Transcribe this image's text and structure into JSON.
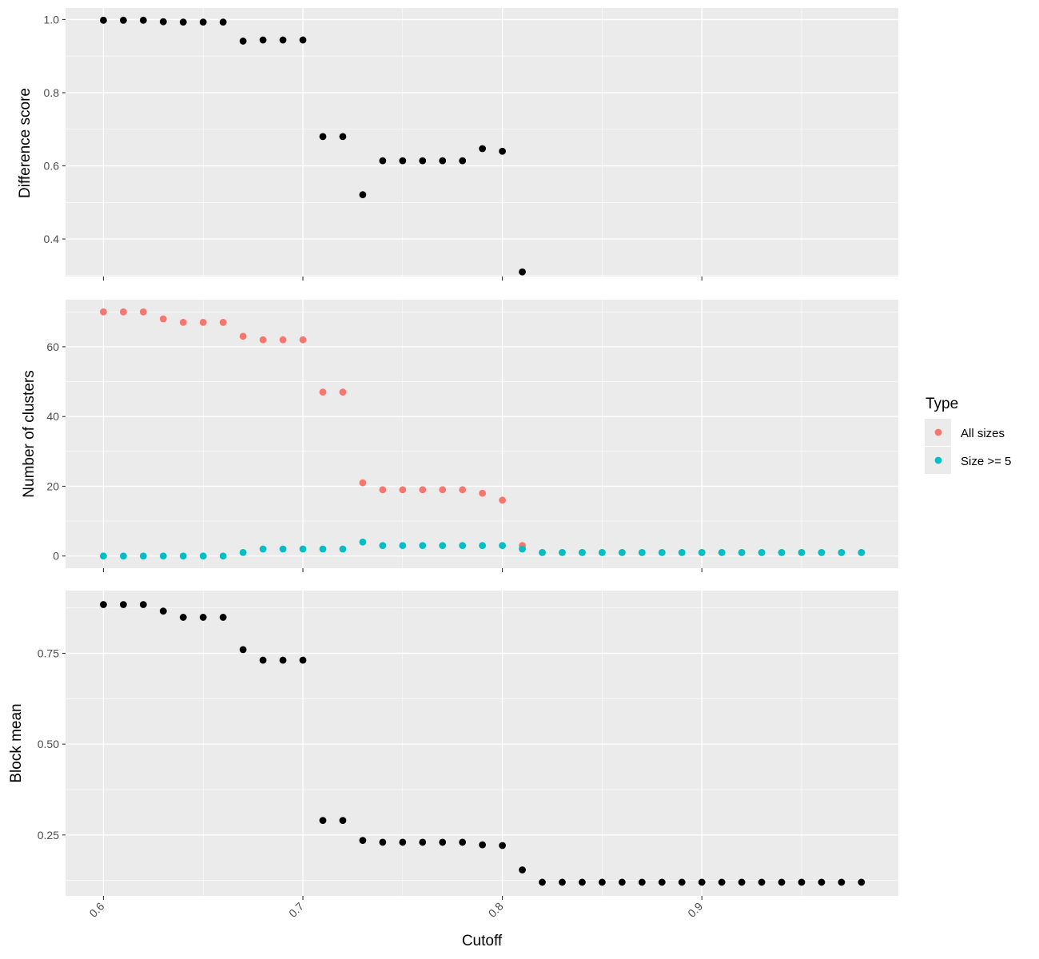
{
  "chart_data": [
    {
      "type": "scatter",
      "ylabel": "Difference score",
      "xlim": [
        0.581,
        0.9985
      ],
      "ylim": [
        0.2975,
        1.0315
      ],
      "y_ticks": [
        "0.4",
        "0.6",
        "0.8",
        "1.0"
      ],
      "y_tick_values": [
        0.4,
        0.6,
        0.8,
        1.0
      ],
      "grid": true,
      "series": [
        {
          "color": "#000000",
          "x": [
            0.6,
            0.61,
            0.62,
            0.63,
            0.64,
            0.65,
            0.66,
            0.67,
            0.68,
            0.69,
            0.7,
            0.71,
            0.72,
            0.73,
            0.74,
            0.75,
            0.76,
            0.77,
            0.78,
            0.79,
            0.8,
            0.81
          ],
          "y": [
            0.998,
            0.998,
            0.998,
            0.994,
            0.993,
            0.993,
            0.993,
            0.941,
            0.944,
            0.944,
            0.944,
            0.68,
            0.68,
            0.521,
            0.614,
            0.614,
            0.614,
            0.614,
            0.614,
            0.647,
            0.64,
            0.31
          ]
        }
      ]
    },
    {
      "type": "scatter",
      "ylabel": "Number of clusters",
      "xlim": [
        0.581,
        0.9985
      ],
      "ylim": [
        -3.5,
        73.5
      ],
      "y_ticks": [
        "0",
        "20",
        "40",
        "60"
      ],
      "y_tick_values": [
        0,
        20,
        40,
        60
      ],
      "grid": true,
      "legend_position": "right",
      "legend_title": "Type",
      "series": [
        {
          "name": "All sizes",
          "color": "#F8766D",
          "x": [
            0.6,
            0.61,
            0.62,
            0.63,
            0.64,
            0.65,
            0.66,
            0.67,
            0.68,
            0.69,
            0.7,
            0.71,
            0.72,
            0.73,
            0.74,
            0.75,
            0.76,
            0.77,
            0.78,
            0.79,
            0.8,
            0.81,
            0.82,
            0.83,
            0.84,
            0.85,
            0.86,
            0.87,
            0.88,
            0.89,
            0.9,
            0.91,
            0.92,
            0.93,
            0.94,
            0.95,
            0.96,
            0.97,
            0.98
          ],
          "y": [
            70,
            70,
            70,
            68,
            67,
            67,
            67,
            63,
            62,
            62,
            62,
            47,
            47,
            21,
            19,
            19,
            19,
            19,
            19,
            18,
            16,
            3,
            1,
            1,
            1,
            1,
            1,
            1,
            1,
            1,
            1,
            1,
            1,
            1,
            1,
            1,
            1,
            1,
            1
          ]
        },
        {
          "name": "Size >= 5",
          "color": "#00BFC4",
          "x": [
            0.6,
            0.61,
            0.62,
            0.63,
            0.64,
            0.65,
            0.66,
            0.67,
            0.68,
            0.69,
            0.7,
            0.71,
            0.72,
            0.73,
            0.74,
            0.75,
            0.76,
            0.77,
            0.78,
            0.79,
            0.8,
            0.81,
            0.82,
            0.83,
            0.84,
            0.85,
            0.86,
            0.87,
            0.88,
            0.89,
            0.9,
            0.91,
            0.92,
            0.93,
            0.94,
            0.95,
            0.96,
            0.97,
            0.98
          ],
          "y": [
            0,
            0,
            0,
            0,
            0,
            0,
            0,
            1,
            2,
            2,
            2,
            2,
            2,
            4,
            3,
            3,
            3,
            3,
            3,
            3,
            3,
            2,
            1,
            1,
            1,
            1,
            1,
            1,
            1,
            1,
            1,
            1,
            1,
            1,
            1,
            1,
            1,
            1,
            1
          ]
        }
      ]
    },
    {
      "type": "scatter",
      "xlabel": "Cutoff",
      "ylabel": "Block mean",
      "xlim": [
        0.581,
        0.9985
      ],
      "ylim": [
        0.0825,
        0.9225
      ],
      "x_ticks": [
        "0.6",
        "0.7",
        "0.8",
        "0.9"
      ],
      "x_tick_values": [
        0.6,
        0.7,
        0.8,
        0.9
      ],
      "y_ticks": [
        "0.25",
        "0.50",
        "0.75"
      ],
      "y_tick_values": [
        0.25,
        0.5,
        0.75
      ],
      "grid": true,
      "series": [
        {
          "color": "#000000",
          "x": [
            0.6,
            0.61,
            0.62,
            0.63,
            0.64,
            0.65,
            0.66,
            0.67,
            0.68,
            0.69,
            0.7,
            0.71,
            0.72,
            0.73,
            0.74,
            0.75,
            0.76,
            0.77,
            0.78,
            0.79,
            0.8,
            0.81,
            0.82,
            0.83,
            0.84,
            0.85,
            0.86,
            0.87,
            0.88,
            0.89,
            0.9,
            0.91,
            0.92,
            0.93,
            0.94,
            0.95,
            0.96,
            0.97,
            0.98
          ],
          "y": [
            0.884,
            0.884,
            0.884,
            0.866,
            0.849,
            0.849,
            0.849,
            0.76,
            0.731,
            0.731,
            0.731,
            0.29,
            0.29,
            0.235,
            0.23,
            0.23,
            0.23,
            0.23,
            0.23,
            0.223,
            0.221,
            0.154,
            0.12,
            0.12,
            0.12,
            0.12,
            0.12,
            0.12,
            0.12,
            0.12,
            0.12,
            0.12,
            0.12,
            0.12,
            0.12,
            0.12,
            0.12,
            0.12,
            0.12
          ]
        }
      ]
    }
  ]
}
